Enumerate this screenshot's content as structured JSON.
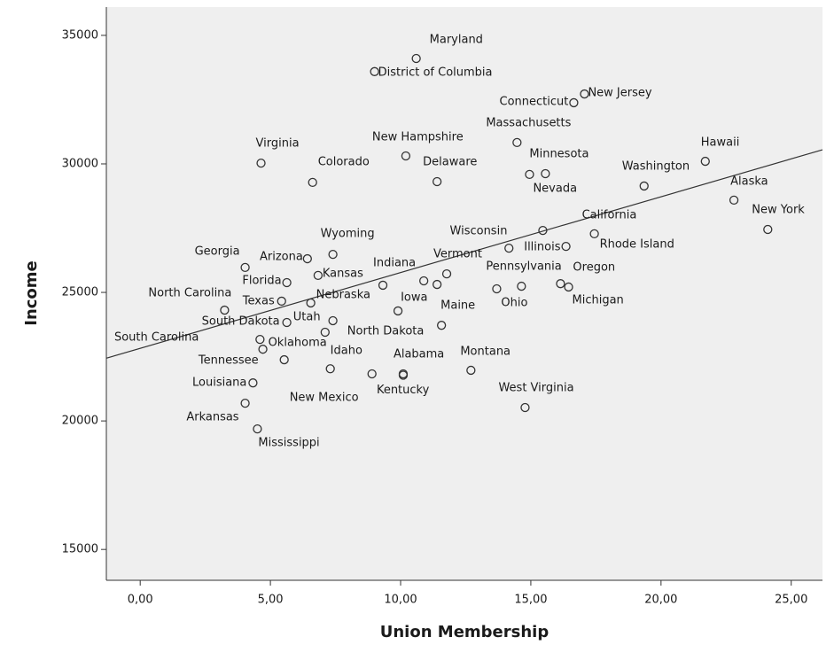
{
  "chart_data": {
    "type": "scatter",
    "xlabel": "Union Membership",
    "ylabel": "Income",
    "xlim": [
      -1.3,
      26.2
    ],
    "ylim": [
      13800,
      36100
    ],
    "xticks": [
      {
        "value": 0,
        "label": "0,00"
      },
      {
        "value": 5,
        "label": "5,00"
      },
      {
        "value": 10,
        "label": "10,00"
      },
      {
        "value": 15,
        "label": "15,00"
      },
      {
        "value": 20,
        "label": "20,00"
      },
      {
        "value": 25,
        "label": "25,00"
      }
    ],
    "yticks": [
      15000,
      20000,
      25000,
      30000,
      35000
    ],
    "marker_color": "#333333",
    "labels": [
      "Maryland",
      "District of Columbia",
      "New Jersey",
      "Connecticut",
      "Massachusetts",
      "Virginia",
      "New Hampshire",
      "Minnesota",
      "Nevada",
      "Hawaii",
      "Colorado",
      "Delaware",
      "Washington",
      "Alaska",
      "New York",
      "California",
      "Wisconsin",
      "Illinois",
      "Rhode Island",
      "Wyoming",
      "Arizona",
      "Georgia",
      "Kansas",
      "Vermont",
      "Florida",
      "Indiana",
      null,
      null,
      "Pennsylvania",
      "Ohio",
      "Oregon",
      "Michigan",
      "North Carolina",
      "Texas",
      "Nebraska",
      "Iowa",
      "Maine",
      "South Dakota",
      "Utah",
      "North Dakota",
      "South Carolina",
      "Oklahoma",
      "Idaho",
      "Alabama",
      "Montana",
      "Tennessee",
      "Kentucky",
      "New Mexico",
      "Louisiana",
      "West Virginia",
      "Arkansas",
      "Mississippi"
    ],
    "x": [
      10.6,
      9.0,
      17.06,
      16.65,
      14.47,
      4.64,
      10.2,
      15.56,
      14.95,
      21.7,
      6.62,
      11.4,
      19.35,
      22.8,
      24.1,
      17.44,
      15.46,
      14.16,
      16.35,
      7.4,
      6.42,
      4.03,
      6.83,
      11.77,
      5.63,
      9.32,
      10.89,
      11.4,
      14.64,
      13.69,
      16.14,
      16.45,
      3.24,
      5.43,
      6.55,
      9.9,
      11.57,
      5.63,
      7.4,
      7.1,
      4.6,
      4.71,
      7.3,
      10.1,
      12.7,
      5.53,
      10.1,
      8.9,
      4.33,
      14.78,
      4.03,
      4.5
    ],
    "values": [
      34100,
      33590,
      32720,
      32380,
      30830,
      30030,
      30310,
      29620,
      29590,
      30100,
      29280,
      29310,
      29140,
      28590,
      27450,
      27280,
      27410,
      26720,
      26790,
      26480,
      26310,
      25970,
      25660,
      25720,
      25380,
      25280,
      25450,
      25310,
      25240,
      25140,
      25340,
      25210,
      24310,
      24660,
      24590,
      24280,
      23720,
      23830,
      23900,
      23450,
      23170,
      22790,
      22030,
      21830,
      21970,
      22380,
      21780,
      21830,
      21480,
      20520,
      20690,
      19690
    ],
    "fit_line": {
      "x": [
        -1.3,
        26.2
      ],
      "y": [
        22440,
        30550
      ]
    }
  }
}
